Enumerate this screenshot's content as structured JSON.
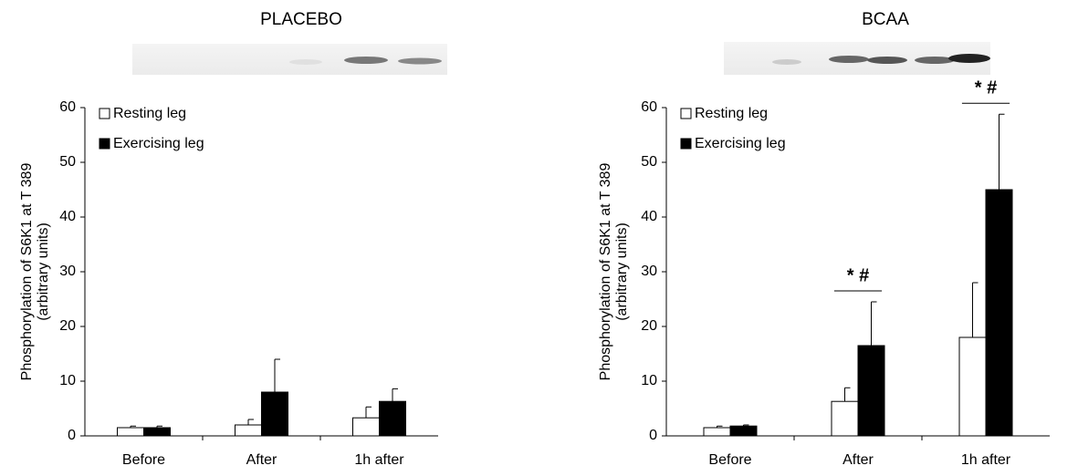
{
  "chart_data": [
    {
      "type": "bar",
      "title": "PLACEBO",
      "y_label": [
        "Phosphorylation of S6K1 at T 389",
        "(arbitrary units)"
      ],
      "categories": [
        "Before",
        "After",
        "1h after"
      ],
      "series": [
        {
          "name": "Resting leg",
          "color": "#ffffff",
          "values": [
            1.5,
            2,
            3.3
          ],
          "errors": [
            0.3,
            1,
            2
          ]
        },
        {
          "name": "Exercising leg",
          "color": "#000000",
          "values": [
            1.5,
            8,
            6.3
          ],
          "errors": [
            0.3,
            6,
            2.3
          ]
        }
      ],
      "ylim": [
        0,
        60
      ],
      "yticks": [
        0,
        10,
        20,
        30,
        40,
        50,
        60
      ],
      "legend": "top-left"
    },
    {
      "type": "bar",
      "title": "BCAA",
      "y_label": [
        "Phosphorylation of S6K1 at T 389",
        "(arbitrary units)"
      ],
      "categories": [
        "Before",
        "After",
        "1h after"
      ],
      "series": [
        {
          "name": "Resting leg",
          "color": "#ffffff",
          "values": [
            1.5,
            6.3,
            18
          ],
          "errors": [
            0.3,
            2.5,
            10
          ]
        },
        {
          "name": "Exercising leg",
          "color": "#000000",
          "values": [
            1.8,
            16.5,
            45
          ],
          "errors": [
            0.2,
            8,
            13.8
          ]
        }
      ],
      "annotations": [
        {
          "category": "After",
          "text": "* #"
        },
        {
          "category": "1h after",
          "text": "* #"
        }
      ],
      "ylim": [
        0,
        60
      ],
      "yticks": [
        0,
        10,
        20,
        30,
        40,
        50,
        60
      ],
      "legend": "top-left"
    }
  ]
}
